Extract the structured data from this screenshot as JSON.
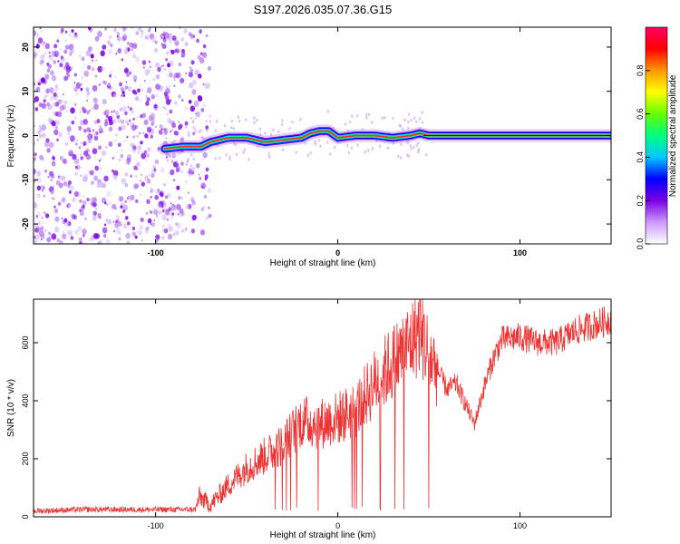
{
  "title": "S197.2026.035.07.36.G15",
  "chart_data": [
    {
      "type": "heatmap",
      "xlabel": "Height of straight line (km)",
      "ylabel": "Frequency (Hz)",
      "xlim": [
        -167,
        150
      ],
      "ylim": [
        -24.5,
        24.5
      ],
      "x_ticks": [
        -100,
        0,
        100
      ],
      "x_tick_labels": [
        "-100",
        "0",
        "100"
      ],
      "y_ticks": [
        -20,
        -10,
        0,
        10,
        20
      ],
      "y_tick_labels": [
        "-20",
        "-10",
        "0",
        "10",
        "20"
      ],
      "colorbar": {
        "label": "Normalized spectral amplitude",
        "range": [
          0,
          1
        ],
        "ticks": [
          0.0,
          0.2,
          0.4,
          0.6,
          0.8
        ],
        "tick_labels": [
          "0.0",
          "0.2",
          "0.4",
          "0.6",
          "0.8"
        ],
        "colors": [
          "#ffffff",
          "#cc99ff",
          "#7a00e6",
          "#0000ff",
          "#00c8ff",
          "#00ff80",
          "#66ff00",
          "#ffff00",
          "#ff9900",
          "#ff0000",
          "#ff0066"
        ]
      },
      "noise_region": [
        -167,
        -70
      ],
      "trace": {
        "x": [
          -95,
          -85,
          -75,
          -70,
          -60,
          -50,
          -40,
          -30,
          -20,
          -15,
          -10,
          -5,
          0,
          10,
          20,
          30,
          40,
          45,
          50,
          60,
          80,
          100,
          120,
          150
        ],
        "y": [
          -3,
          -2.5,
          -2.5,
          -1.5,
          -0.5,
          -0.5,
          -1.5,
          -1,
          -0.5,
          0.5,
          1,
          1,
          -0.5,
          0,
          0,
          -0.5,
          0,
          0.5,
          0,
          0,
          0,
          0,
          0,
          0
        ]
      }
    },
    {
      "type": "line",
      "xlabel": "Height of straight line (km)",
      "ylabel": "SNR (10 * v/v)",
      "xlim": [
        -167,
        150
      ],
      "ylim": [
        0,
        750
      ],
      "x_ticks": [
        -100,
        0,
        100
      ],
      "x_tick_labels": [
        "-100",
        "0",
        "100"
      ],
      "y_ticks": [
        0,
        200,
        400,
        600
      ],
      "y_tick_labels": [
        "0",
        "200",
        "400",
        "600"
      ],
      "color": "#ee3333",
      "series": [
        {
          "x": [
            -167,
            -140,
            -110,
            -90,
            -78,
            -76,
            -70,
            -60,
            -50,
            -40,
            -30,
            -20,
            -10,
            0,
            10,
            20,
            30,
            40,
            45,
            50,
            55,
            60,
            65,
            70,
            75,
            80,
            85,
            90,
            100,
            110,
            120,
            130,
            140,
            150
          ],
          "y": [
            20,
            25,
            25,
            25,
            25,
            70,
            40,
            110,
            170,
            210,
            250,
            330,
            320,
            340,
            370,
            460,
            530,
            600,
            650,
            560,
            500,
            440,
            460,
            390,
            320,
            440,
            540,
            610,
            620,
            600,
            600,
            640,
            660,
            680
          ]
        }
      ]
    }
  ]
}
